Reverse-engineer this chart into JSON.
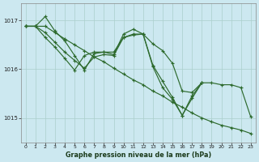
{
  "xlabel": "Graphe pression niveau de la mer (hPa)",
  "background_color": "#cce8f0",
  "grid_color": "#aacfcc",
  "line_color": "#2d6a2d",
  "ylim": [
    1014.5,
    1017.35
  ],
  "yticks": [
    1015,
    1016,
    1017
  ],
  "x_ticks": [
    0,
    1,
    2,
    3,
    4,
    5,
    6,
    7,
    8,
    9,
    10,
    11,
    12,
    13,
    14,
    15,
    16,
    17,
    18,
    19,
    20,
    21,
    22,
    23
  ],
  "series": [
    [
      1016.88,
      1016.88,
      1017.08,
      1016.78,
      1016.58,
      1016.28,
      1015.98,
      1016.32,
      1016.35,
      1016.3,
      1016.72,
      1016.82,
      1016.72,
      1016.08,
      1015.75,
      1015.42,
      1015.05,
      1015.4,
      1015.72,
      null,
      null,
      null,
      null,
      null
    ],
    [
      1016.88,
      1016.88,
      1016.75,
      1016.55,
      1016.35,
      1016.18,
      1016.02,
      1016.25,
      1016.3,
      1016.28,
      1016.65,
      1016.72,
      1016.72,
      1016.52,
      1016.38,
      1016.12,
      1015.55,
      1015.52,
      1015.72,
      1015.72,
      1015.68,
      1015.68,
      1015.62,
      1015.02
    ],
    [
      1016.88,
      1016.88,
      1016.65,
      1016.45,
      1016.22,
      1015.98,
      1016.28,
      1016.35,
      1016.35,
      1016.35,
      1016.65,
      1016.7,
      1016.72,
      1016.05,
      1015.62,
      1015.38,
      1015.05,
      1015.45,
      1015.72,
      null,
      null,
      null,
      null,
      null
    ],
    [
      1016.88,
      1016.88,
      1016.88,
      1016.75,
      1016.62,
      1016.5,
      1016.38,
      1016.25,
      1016.15,
      1016.02,
      1015.9,
      1015.78,
      1015.68,
      1015.55,
      1015.45,
      1015.32,
      1015.22,
      1015.1,
      1015.0,
      1014.92,
      1014.85,
      1014.8,
      1014.75,
      1014.68
    ]
  ],
  "figsize": [
    3.2,
    2.0
  ],
  "dpi": 100
}
